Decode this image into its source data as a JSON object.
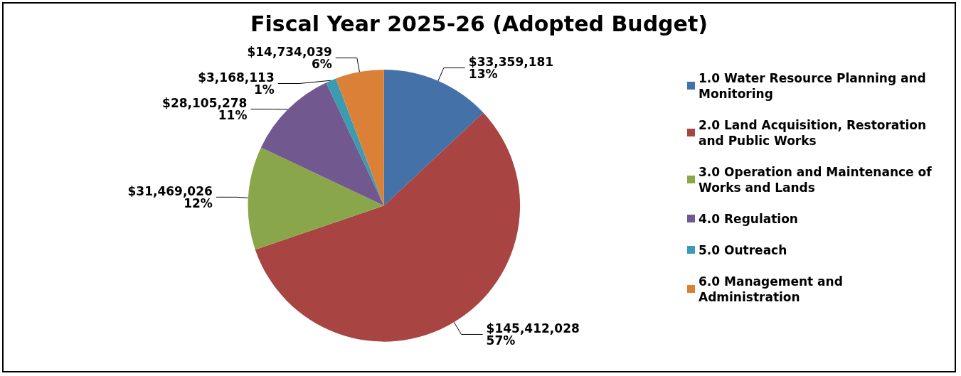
{
  "chart_data": {
    "type": "pie",
    "title": "Fiscal Year 2025-26 (Adopted Budget)",
    "categories": [
      "1.0 Water Resource Planning and Monitoring",
      "2.0 Land Acquisition, Restoration and Public Works",
      "3.0 Operation and Maintenance of Works and Lands",
      "4.0 Regulation",
      "5.0 Outreach",
      "6.0 Management and Administration"
    ],
    "values": [
      33359181,
      145412028,
      31469026,
      28105278,
      3168113,
      14734039
    ],
    "colors": [
      "#4571a9",
      "#a84442",
      "#89a64b",
      "#71588f",
      "#3b9bb1",
      "#db8137"
    ],
    "value_labels": [
      "$33,359,181\n13%",
      "$145,412,028\n57%",
      "$31,469,026\n12%",
      "$28,105,278\n11%",
      "$3,168,113\n1%",
      "$14,734,039\n6%"
    ],
    "legend": "right"
  }
}
